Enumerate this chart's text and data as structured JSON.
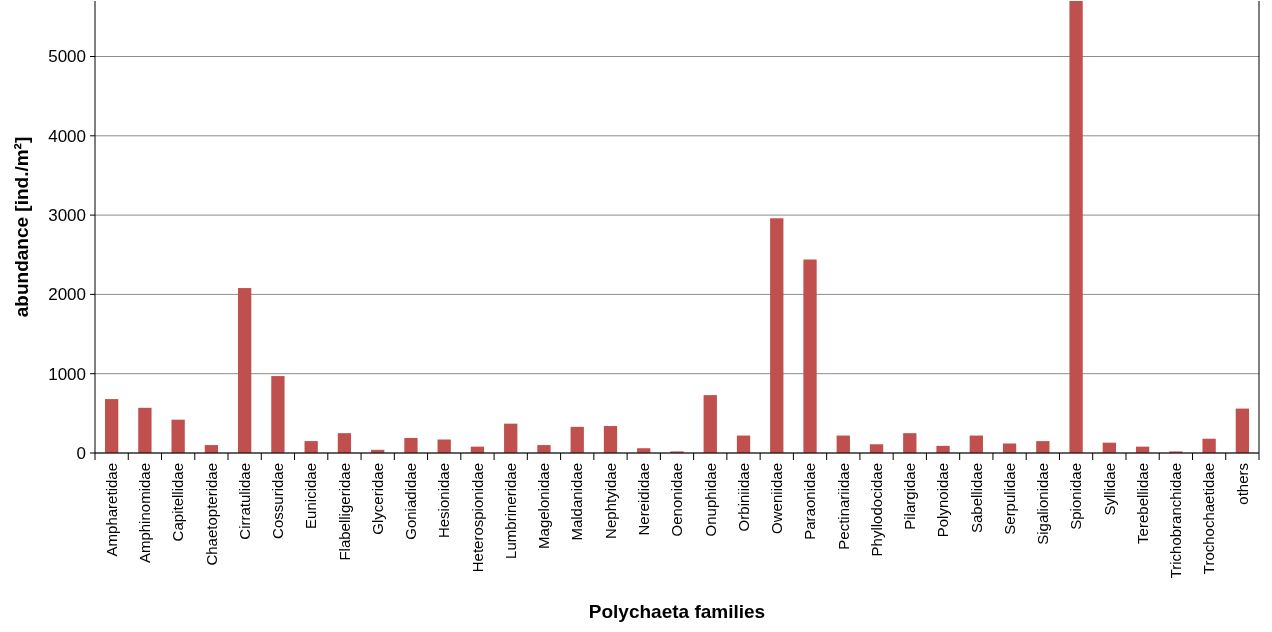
{
  "chart_data": {
    "type": "bar",
    "xlabel": "Polychaeta families",
    "ylabel": "abundance [ind./m²]",
    "categories": [
      "Ampharetidae",
      "Amphinomidae",
      "Capitellidae",
      "Chaetopteridae",
      "Cirratulidae",
      "Cossuridae",
      "Eunicidae",
      "Flabelligeridae",
      "Glyceridae",
      "Goniadidae",
      "Hesionidae",
      "Heterospionidae",
      "Lumbrineridae",
      "Magelonidae",
      "Maldanidae",
      "Nephtyidae",
      "Nereididae",
      "Oenonidae",
      "Onuphidae",
      "Orbiniidae",
      "Oweniidae",
      "Paraonidae",
      "Pectinariidae",
      "Phyllodocidae",
      "Pilargidae",
      "Polynoidae",
      "Sabellidae",
      "Serpulidae",
      "Sigalionidae",
      "Spionidae",
      "Syllidae",
      "Terebellidae",
      "Trichobranchidae",
      "Trochochaetidae",
      "others"
    ],
    "values": [
      680,
      570,
      420,
      100,
      2080,
      970,
      150,
      250,
      40,
      190,
      170,
      80,
      370,
      100,
      330,
      340,
      60,
      20,
      730,
      220,
      2960,
      2440,
      220,
      110,
      250,
      90,
      220,
      120,
      150,
      5700,
      130,
      80,
      20,
      180,
      560
    ],
    "color": "#c0504d",
    "ylim": [
      0,
      5700
    ],
    "yticks": [
      0,
      1000,
      2000,
      3000,
      4000,
      5000
    ],
    "grid": "y"
  }
}
